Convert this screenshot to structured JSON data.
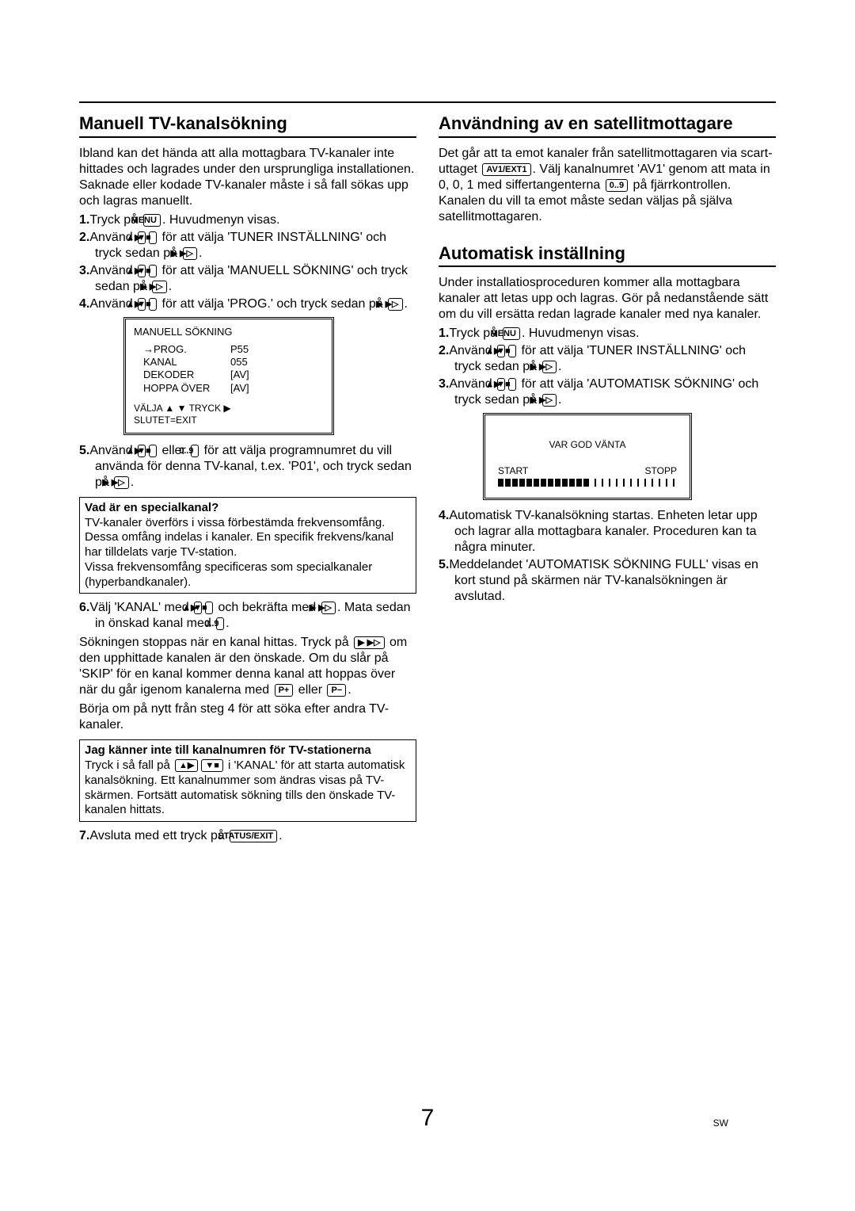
{
  "buttons": {
    "menu": "MENU",
    "up": "▲▶",
    "down": "▼■",
    "play": "▶ ▶▷",
    "nums": "0..9",
    "av1": "AV1/EXT1",
    "pplus": "P+",
    "pminus": "P−",
    "status": "STATUS/EXIT"
  },
  "left": {
    "h": "Manuell TV-kanalsökning",
    "intro": "Ibland kan det hända att alla mottagbara TV-kanaler inte hittades och lagrades under den ursprungliga installationen. Saknade eller kodade TV-kanaler måste i så fall sökas upp och lagras manuellt.",
    "s1a": "Tryck på ",
    "s1b": ". Huvudmenyn visas.",
    "s2a": "Använd ",
    "s2b": " för att välja 'TUNER INSTÄLLNING' och tryck sedan på ",
    "s3a": "Använd ",
    "s3b": " för att välja 'MANUELL SÖKNING' och tryck sedan på ",
    "s4a": "Använd ",
    "s4b": " för att välja 'PROG.' och tryck sedan på ",
    "osd": {
      "title": "MANUELL SÖKNING",
      "rows": [
        [
          "→PROG.",
          "P55"
        ],
        [
          "KANAL",
          "055"
        ],
        [
          "DEKODER",
          "[AV]"
        ],
        [
          "HOPPA ÖVER",
          "[AV]"
        ]
      ],
      "foot1": "VÄLJA ▲ ▼  TRYCK ▶",
      "foot2": "SLUTET=EXIT"
    },
    "s5a": "Använd ",
    "s5b": " eller ",
    "s5c": " för att välja programnumret du vill använda för denna TV-kanal, t.ex. 'P01', och tryck sedan på ",
    "box1h": "Vad är en specialkanal?",
    "box1t": "TV-kanaler överförs i vissa förbestämda frekvensomfång. Dessa omfång indelas i kanaler. En specifik frekvens/kanal har tilldelats varje TV-station.\nVissa frekvensomfång specificeras som specialkanaler (hyperbandkanaler).",
    "s6a": "Välj 'KANAL' med ",
    "s6b": " och bekräfta med ",
    "s6c": ". Mata sedan in önskad kanal med ",
    "p7": "Sökningen stoppas när en kanal hittas. Tryck på ",
    "p7b": " om den upphittade kanalen är den önskade. Om du slår på 'SKIP' för en kanal kommer denna kanal att hoppas över när du går igenom kanalerna med ",
    "p7c": " eller ",
    "p8": "Börja om på nytt från steg 4 för att söka efter andra TV-kanaler.",
    "box2h": "Jag känner inte till kanalnumren för TV-stationerna",
    "box2t1": "Tryck i så fall på ",
    "box2t2": " i 'KANAL' för att starta automatisk kanalsökning. Ett kanalnummer som ändras visas på TV-skärmen. Fortsätt automatisk sökning tills den önskade TV-kanalen hittats.",
    "s7a": "Avsluta med ett tryck på "
  },
  "right": {
    "h1": "Användning av en satellitmottagare",
    "p1a": "Det går att ta emot kanaler från satellitmottagaren via scart-uttaget ",
    "p1b": ". Välj kanalnumret 'AV1' genom att mata in 0, 0, 1 med siffertangenterna ",
    "p1c": " på fjärrkontrollen. Kanalen du vill ta emot måste sedan väljas på själva satellitmottagaren.",
    "h2": "Automatisk inställning",
    "p2": "Under installatiosproceduren kommer alla mottagbara kanaler att letas upp och lagras. Gör på nedanstående sätt om du vill ersätta redan lagrade kanaler med nya kanaler.",
    "s1a": "Tryck på ",
    "s1b": ". Huvudmenyn visas.",
    "s2a": "Använd ",
    "s2b": " för att välja 'TUNER INSTÄLLNING' och tryck sedan på ",
    "s3a": "Använd ",
    "s3b": " för att välja 'AUTOMATISK SÖKNING' och tryck sedan på ",
    "osd": {
      "mid": "VAR GOD VÄNTA",
      "start": "START",
      "stopp": "STOPP"
    },
    "s4": "Automatisk TV-kanalsökning startas. Enheten letar upp och lagrar alla mottagbara kanaler. Proceduren kan ta några minuter.",
    "s5": "Meddelandet 'AUTOMATISK SÖKNING FULL' visas en kort stund på skärmen när TV-kanalsökningen är avslutad."
  },
  "page": {
    "num": "7",
    "lang": "SW"
  }
}
